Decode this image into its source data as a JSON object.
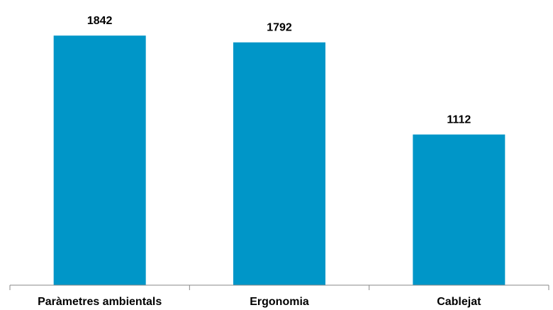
{
  "chart_data": {
    "type": "bar",
    "categories": [
      "Paràmetres ambientals",
      "Ergonomia",
      "Cablejat"
    ],
    "values": [
      1842,
      1792,
      1112
    ],
    "data_labels": [
      "1842",
      "1792",
      "1112"
    ],
    "title": "",
    "xlabel": "",
    "ylabel": "",
    "ylim": [
      0,
      2000
    ],
    "grid": false,
    "legend": "none",
    "bar_color": "#0096c8"
  }
}
